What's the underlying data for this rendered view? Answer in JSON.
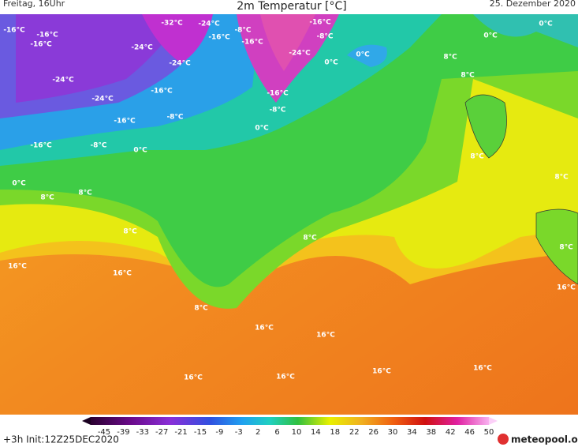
{
  "header": {
    "left": "Freitag, 16Uhr",
    "title": "2m Temperatur [°C]",
    "right": "25. Dezember 2020"
  },
  "map": {
    "labels": [
      "-16°C",
      "-16°C",
      "-16°C",
      "-32°C",
      "-24°C",
      "-8°C",
      "-16°C",
      "-24°C",
      "-16°C",
      "-16°C",
      "-8°C",
      "-24°C",
      "0°C",
      "0°C",
      "0°C",
      "8°C",
      "-24°C",
      "0°C",
      "-24°C",
      "-16°C",
      "8°C",
      "-24°C",
      "-16°C",
      "-8°C",
      "-16°C",
      "-8°C",
      "0°C",
      "-16°C",
      "-8°C",
      "0°C",
      "8°C",
      "0°C",
      "8°C",
      "8°C",
      "8°C",
      "8°C",
      "8°C",
      "8°C",
      "16°C",
      "16°C",
      "16°C",
      "8°C",
      "16°C",
      "16°C",
      "16°C",
      "16°C",
      "16°C",
      "16°C"
    ]
  },
  "colorbar": {
    "labels": [
      -45,
      -39,
      -33,
      -27,
      -21,
      -15,
      -9,
      -3,
      2,
      6,
      10,
      14,
      18,
      22,
      26,
      30,
      34,
      38,
      42,
      46,
      50
    ]
  },
  "footer": {
    "left": "+3h  Init:12Z25DEC2020",
    "logo": "meteopool.org"
  }
}
